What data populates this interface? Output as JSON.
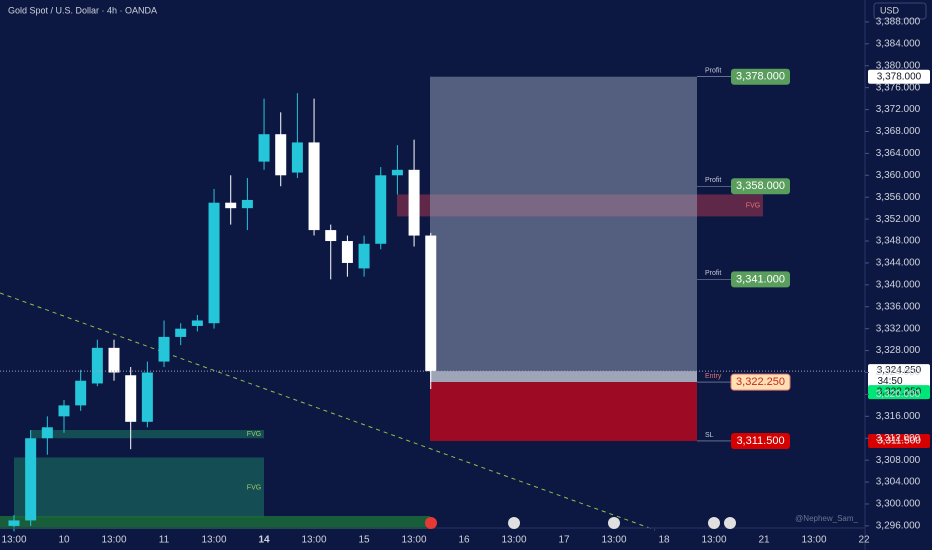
{
  "chart_data": {
    "type": "candlestick",
    "title": "Gold Spot / U.S. Dollar · 4h · OANDA",
    "currency": "USD",
    "x_labels": [
      "13:00",
      "10",
      "13:00",
      "11",
      "13:00",
      "14",
      "13:00",
      "15",
      "13:00",
      "16",
      "13:00",
      "17",
      "13:00",
      "18",
      "13:00",
      "21",
      "13:00",
      "22"
    ],
    "open": [
      3296,
      3297,
      3312,
      3316,
      3318,
      3322,
      3328.5,
      3323.5,
      3315,
      3326,
      3330.5,
      3332.5,
      3333,
      3355,
      3354,
      3362.5,
      3367.5,
      3360.5,
      3366,
      3350,
      3348,
      3343,
      3347.5,
      3360,
      3361,
      3349
    ],
    "high": [
      3298,
      3313.5,
      3316,
      3319,
      3324.5,
      3330,
      3330,
      3325,
      3326,
      3333.5,
      3333,
      3334.5,
      3357.5,
      3360,
      3359.5,
      3374,
      3371.5,
      3375,
      3374,
      3351,
      3349,
      3349,
      3361.5,
      3365.5,
      3366.5,
      3349.5
    ],
    "low": [
      3295,
      3296,
      3309,
      3313,
      3317,
      3321.5,
      3322.5,
      3310,
      3314,
      3325,
      3329,
      3331.5,
      3332,
      3351,
      3350,
      3361,
      3358,
      3359.5,
      3349,
      3341,
      3341.5,
      3341.5,
      3346.5,
      3356.5,
      3347,
      3321
    ],
    "close": [
      3297,
      3312,
      3314,
      3318,
      3322.5,
      3328.5,
      3324,
      3315,
      3324,
      3330.5,
      3332,
      3333.5,
      3355,
      3354,
      3355.5,
      3367.5,
      3360,
      3366,
      3350,
      3348,
      3344,
      3347.5,
      3360,
      3361,
      3349,
      3324.25
    ],
    "up_color": "#26c6da",
    "down_color": "#ffffff",
    "ylim": [
      3291.6,
      3392
    ],
    "yticks": [
      {
        "value": 3296,
        "label": "3,296.000"
      },
      {
        "value": 3300,
        "label": "3,300.000"
      },
      {
        "value": 3304,
        "label": "3,304.000"
      },
      {
        "value": 3308,
        "label": "3,308.000"
      },
      {
        "value": 3312,
        "label": "3,312.000"
      },
      {
        "value": 3316,
        "label": "3,316.000"
      },
      {
        "value": 3320,
        "label": "3,320.000"
      },
      {
        "value": 3324,
        "label": "3,324.000"
      },
      {
        "value": 3328,
        "label": "3,328.000"
      },
      {
        "value": 3332,
        "label": "3,332.000"
      },
      {
        "value": 3336,
        "label": "3,336.000"
      },
      {
        "value": 3340,
        "label": "3,340.000"
      },
      {
        "value": 3344,
        "label": "3,344.000"
      },
      {
        "value": 3348,
        "label": "3,348.000"
      },
      {
        "value": 3352,
        "label": "3,352.000"
      },
      {
        "value": 3356,
        "label": "3,356.000"
      },
      {
        "value": 3360,
        "label": "3,360.000"
      },
      {
        "value": 3364,
        "label": "3,364.000"
      },
      {
        "value": 3368,
        "label": "3,368.000"
      },
      {
        "value": 3372,
        "label": "3,372.000"
      },
      {
        "value": 3376,
        "label": "3,376.000"
      },
      {
        "value": 3380,
        "label": "3,380.000"
      },
      {
        "value": 3384,
        "label": "3,384.000"
      },
      {
        "value": 3388,
        "label": "3,388.000"
      }
    ],
    "last_price": {
      "value": 3324.25,
      "label": "3,324.250"
    },
    "countdown": "34:50",
    "position": {
      "targets": [
        {
          "label": "Profit",
          "price": 3378,
          "price_label": "3,378.000"
        },
        {
          "label": "Profit",
          "price": 3358,
          "price_label": "3,358.000"
        },
        {
          "label": "Profit",
          "price": 3341,
          "price_label": "3,341.000"
        }
      ],
      "entry": {
        "label": "Entry",
        "price": 3322.25,
        "price_label": "3,322.250"
      },
      "stop": {
        "label": "SL",
        "price": 3311.5,
        "price_label": "3,311.500"
      }
    },
    "fvg": [
      {
        "label": "FVG",
        "top": 3356.5,
        "bottom": 3352.5
      },
      {
        "label": "FVG",
        "top": 3313.5,
        "bottom": 3312
      },
      {
        "label": "FVG",
        "top": 3308.5,
        "bottom": 3297.5
      }
    ],
    "watermark": "@Nephew_Sam_"
  }
}
